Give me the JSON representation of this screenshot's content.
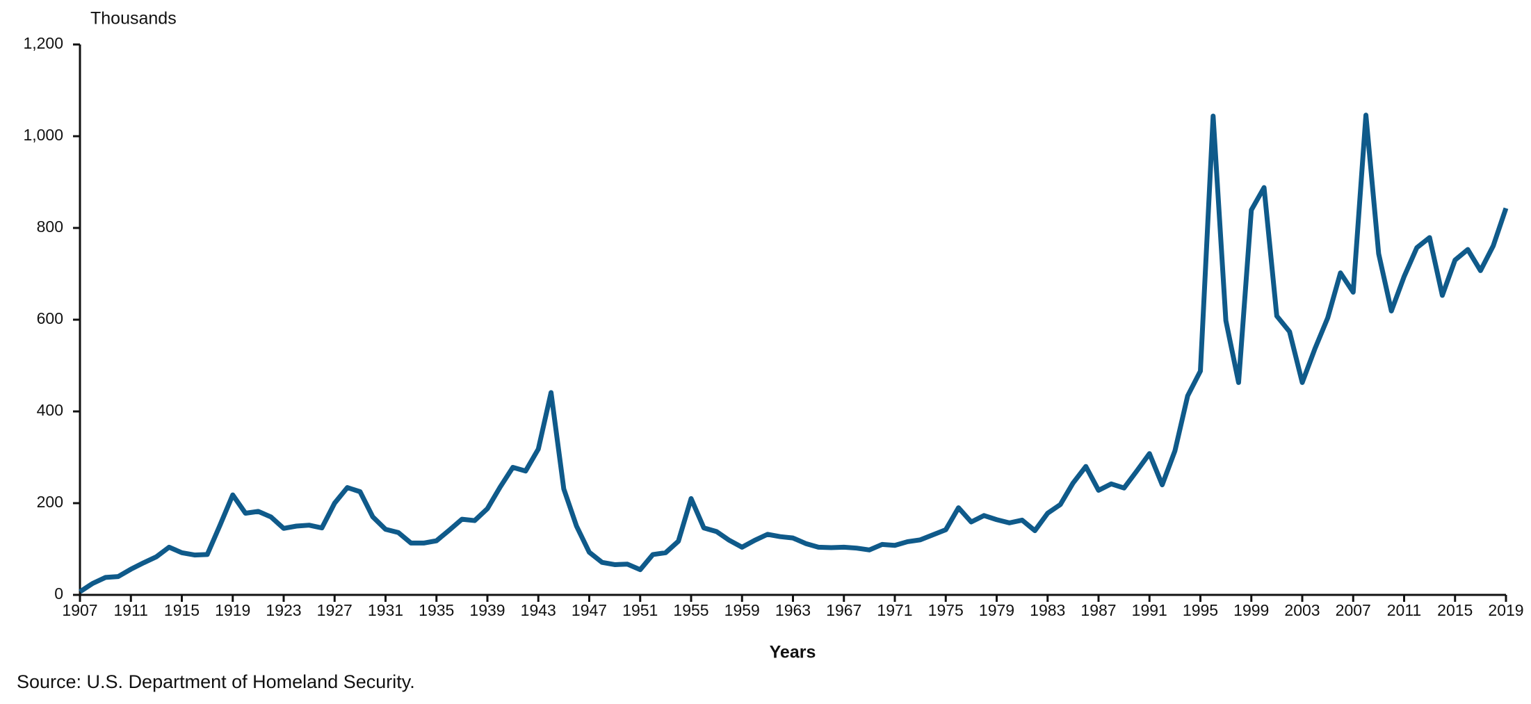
{
  "chart_data": {
    "type": "line",
    "y_label": "Thousands",
    "x_label": "Years",
    "source": "Source: U.S. Department of Homeland Security.",
    "color": "#0f5a8a",
    "x": [
      1907,
      1908,
      1909,
      1910,
      1911,
      1912,
      1913,
      1914,
      1915,
      1916,
      1917,
      1918,
      1919,
      1920,
      1921,
      1922,
      1923,
      1924,
      1925,
      1926,
      1927,
      1928,
      1929,
      1930,
      1931,
      1932,
      1933,
      1934,
      1935,
      1936,
      1937,
      1938,
      1939,
      1940,
      1941,
      1942,
      1943,
      1944,
      1945,
      1946,
      1947,
      1948,
      1949,
      1950,
      1951,
      1952,
      1953,
      1954,
      1955,
      1956,
      1957,
      1958,
      1959,
      1960,
      1961,
      1962,
      1963,
      1964,
      1965,
      1966,
      1967,
      1968,
      1969,
      1970,
      1971,
      1972,
      1973,
      1974,
      1975,
      1976,
      1977,
      1978,
      1979,
      1980,
      1981,
      1982,
      1983,
      1984,
      1985,
      1986,
      1987,
      1988,
      1989,
      1990,
      1991,
      1992,
      1993,
      1994,
      1995,
      1996,
      1997,
      1998,
      1999,
      2000,
      2001,
      2002,
      2003,
      2004,
      2005,
      2006,
      2007,
      2008,
      2009,
      2010,
      2011,
      2012,
      2013,
      2014,
      2015,
      2016,
      2017,
      2018,
      2019
    ],
    "values": [
      7,
      25,
      38,
      40,
      56,
      70,
      83,
      104,
      92,
      87,
      88,
      152,
      218,
      178,
      182,
      170,
      145,
      150,
      152,
      146,
      200,
      234,
      225,
      170,
      143,
      136,
      113,
      113,
      118,
      141,
      165,
      162,
      188,
      235,
      278,
      270,
      318,
      441,
      231,
      150,
      93,
      71,
      66,
      67,
      55,
      88,
      92,
      117,
      210,
      146,
      138,
      119,
      104,
      119,
      132,
      127,
      124,
      112,
      104,
      103,
      104,
      102,
      98,
      110,
      108,
      116,
      120,
      131,
      142,
      190,
      159,
      173,
      164,
      157,
      163,
      140,
      178,
      197,
      244,
      280,
      228,
      242,
      233,
      270,
      308,
      240,
      314,
      434,
      488,
      1044,
      598,
      463,
      839,
      888,
      608,
      574,
      463,
      537,
      604,
      702,
      660,
      1046,
      744,
      619,
      694,
      757,
      779,
      653,
      730,
      753,
      707,
      761,
      843
    ],
    "xlim": [
      1907,
      2019
    ],
    "xticks": [
      1907,
      1911,
      1915,
      1919,
      1923,
      1927,
      1931,
      1935,
      1939,
      1943,
      1947,
      1951,
      1955,
      1959,
      1963,
      1967,
      1971,
      1975,
      1979,
      1983,
      1987,
      1991,
      1995,
      1999,
      2003,
      2007,
      2011,
      2015,
      2019
    ],
    "ylim": [
      0,
      1200
    ],
    "yticks": [
      0,
      200,
      400,
      600,
      800,
      {
        "value": 1000,
        "label": "1,000"
      },
      {
        "value": 1200,
        "label": "1,200"
      }
    ],
    "grid": false
  }
}
